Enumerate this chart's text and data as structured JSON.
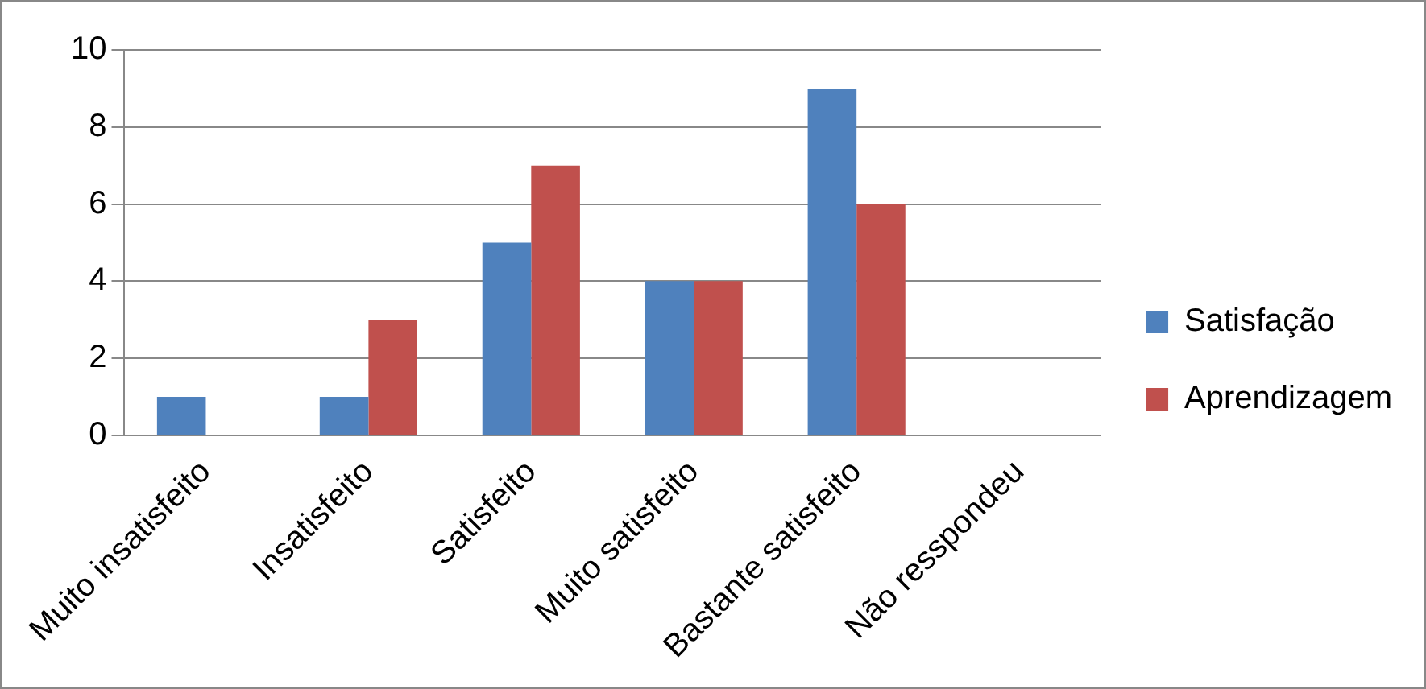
{
  "chart_data": {
    "type": "bar",
    "categories": [
      "Muito insatisfeito",
      "Insatisfeito",
      "Satisfeito",
      "Muito satisfeito",
      "Bastante satisfeito",
      "Não resspondeu"
    ],
    "series": [
      {
        "name": "Satisfação",
        "color": "#4f81bd",
        "values": [
          1,
          1,
          5,
          4,
          9,
          0
        ]
      },
      {
        "name": "Aprendizagem",
        "color": "#c0504d",
        "values": [
          0,
          3,
          7,
          4,
          6,
          0
        ]
      }
    ],
    "ylim": [
      0,
      10
    ],
    "yticks": [
      0,
      2,
      4,
      6,
      8,
      10
    ],
    "grid": "y",
    "legend": "right"
  }
}
